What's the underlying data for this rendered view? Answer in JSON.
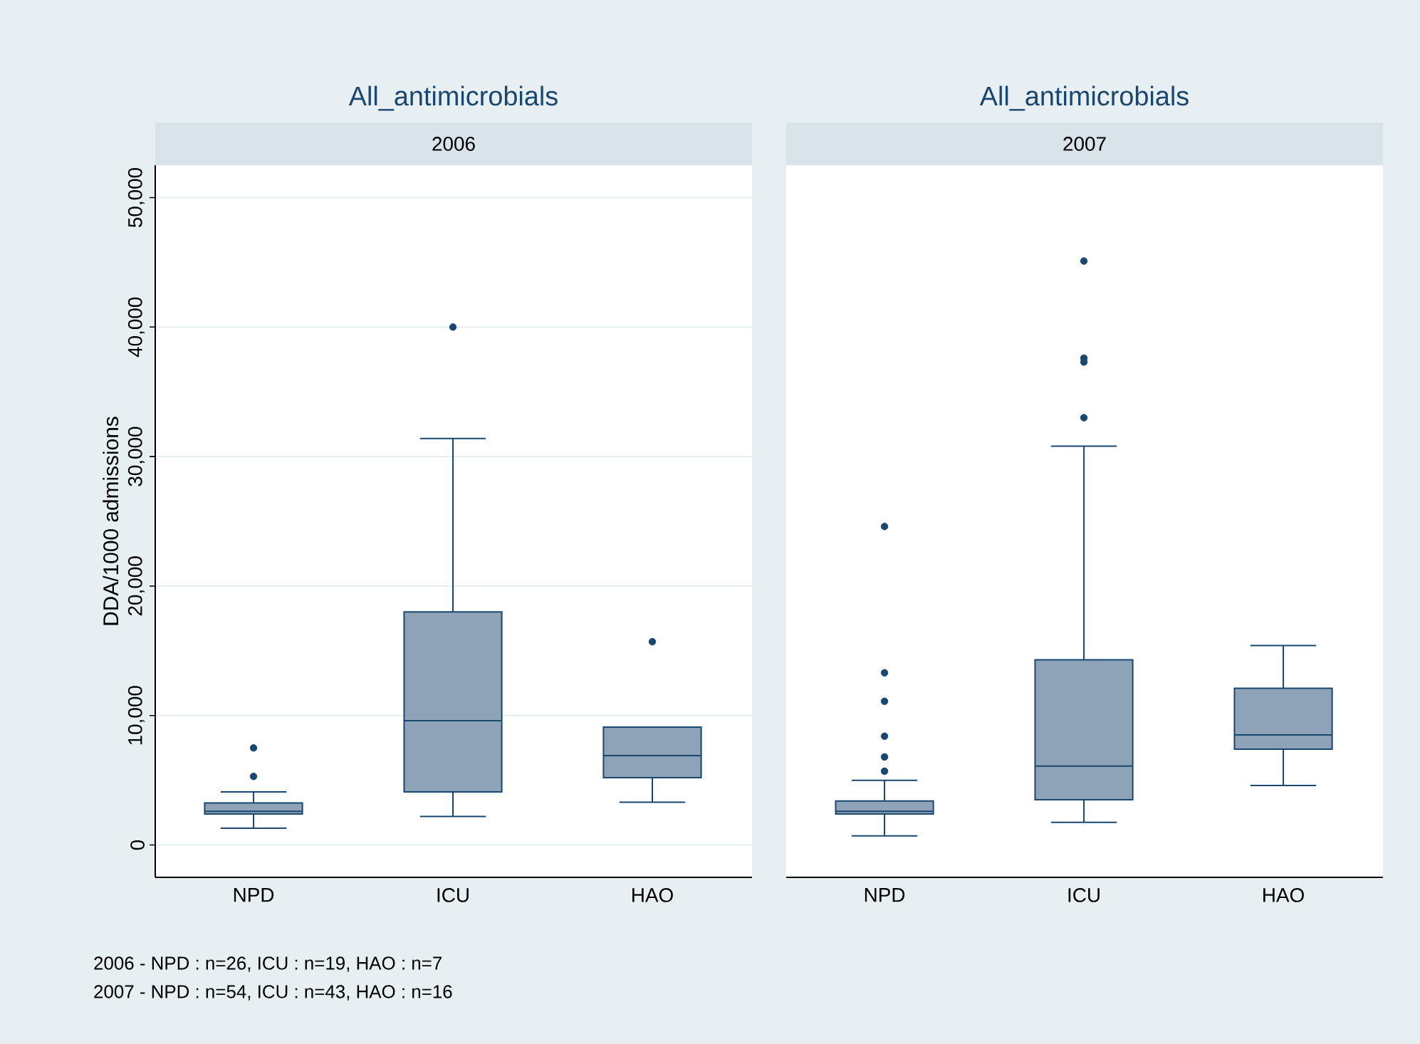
{
  "chart_data": [
    {
      "type": "box",
      "title": "All_antimicrobials",
      "subtitle": "2006",
      "ylabel": "DDA/1000 admissions",
      "categories": [
        "NPD",
        "ICU",
        "HAO"
      ],
      "color": "#8ea3b8",
      "ylim": [
        -2500,
        52500
      ],
      "yticks": [
        0,
        {
          "value": 10000,
          "label": "10,000"
        },
        {
          "value": 20000,
          "label": "20,000"
        },
        {
          "value": 30000,
          "label": "30,000"
        },
        {
          "value": 40000,
          "label": "40,000"
        },
        {
          "value": 50000,
          "label": "50,000"
        }
      ],
      "grid": "y",
      "boxes": [
        {
          "low": 1300,
          "q1": 2400,
          "median": 2600,
          "q3": 3250,
          "high": 4100,
          "outliers": [
            5300,
            7500
          ]
        },
        {
          "low": 2200,
          "q1": 4100,
          "median": 9600,
          "q3": 18000,
          "high": 31400,
          "outliers": [
            40000
          ]
        },
        {
          "low": 3300,
          "q1": 5200,
          "median": 6900,
          "q3": 9100,
          "high": 9100,
          "outliers": [
            15700
          ]
        }
      ],
      "annotations": [
        "2006 - NPD : n=26, ICU : n=19, HAO : n=7",
        "2007 - NPD : n=54, ICU : n=43, HAO : n=16"
      ]
    },
    {
      "type": "box",
      "title": "All_antimicrobials",
      "subtitle": "2007",
      "categories": [
        "NPD",
        "ICU",
        "HAO"
      ],
      "color": "#8ea3b8",
      "ylim": [
        -2500,
        52500
      ],
      "yticks": [
        {
          "value": 0,
          "label": null
        },
        {
          "value": 10000,
          "label": null
        },
        {
          "value": 20000,
          "label": null
        },
        {
          "value": 30000,
          "label": null
        },
        {
          "value": 40000,
          "label": null
        },
        {
          "value": 50000,
          "label": null
        }
      ],
      "grid": "y",
      "tick_labels": "x",
      "boxes": [
        {
          "low": 700,
          "q1": 2400,
          "median": 2600,
          "q3": 3400,
          "high": 5000,
          "outliers": [
            5700,
            6800,
            8400,
            11100,
            13300,
            24600
          ]
        },
        {
          "low": 1750,
          "q1": 3500,
          "median": 6100,
          "q3": 14300,
          "high": 30800,
          "outliers": [
            33000,
            37300,
            37600,
            45100
          ]
        },
        {
          "low": 4600,
          "q1": 7400,
          "median": 8500,
          "q3": 12100,
          "high": 15400
        }
      ]
    }
  ]
}
